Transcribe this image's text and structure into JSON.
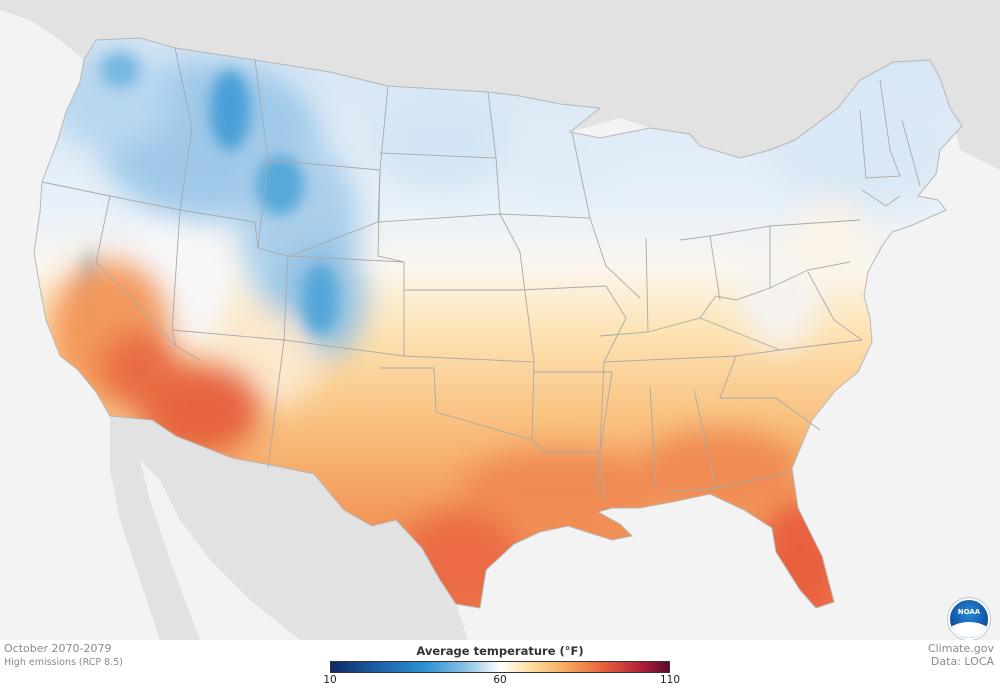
{
  "map": {
    "region": "Contiguous United States",
    "colors": {
      "ocean": "#f3f3f3",
      "foreign_land": "#e2e2e2",
      "state_border": "#a9a9a9"
    }
  },
  "caption": {
    "period": "October 2070-2079",
    "scenario": "High emissions (RCP 8.5)"
  },
  "credits": {
    "site": "Climate.gov",
    "data_source": "Data: LOCA"
  },
  "legend": {
    "title": "Average temperature",
    "unit": "(°F)",
    "ticks": [
      "10",
      "60",
      "110"
    ],
    "min": 10,
    "mid": 60,
    "max": 110,
    "scale_colors": [
      "#0c2b63",
      "#2b93d2",
      "#ffffff",
      "#f6a75b",
      "#e4573a",
      "#5e0a2c"
    ]
  },
  "logo": {
    "name": "noaa-logo",
    "text": "NOAA"
  }
}
